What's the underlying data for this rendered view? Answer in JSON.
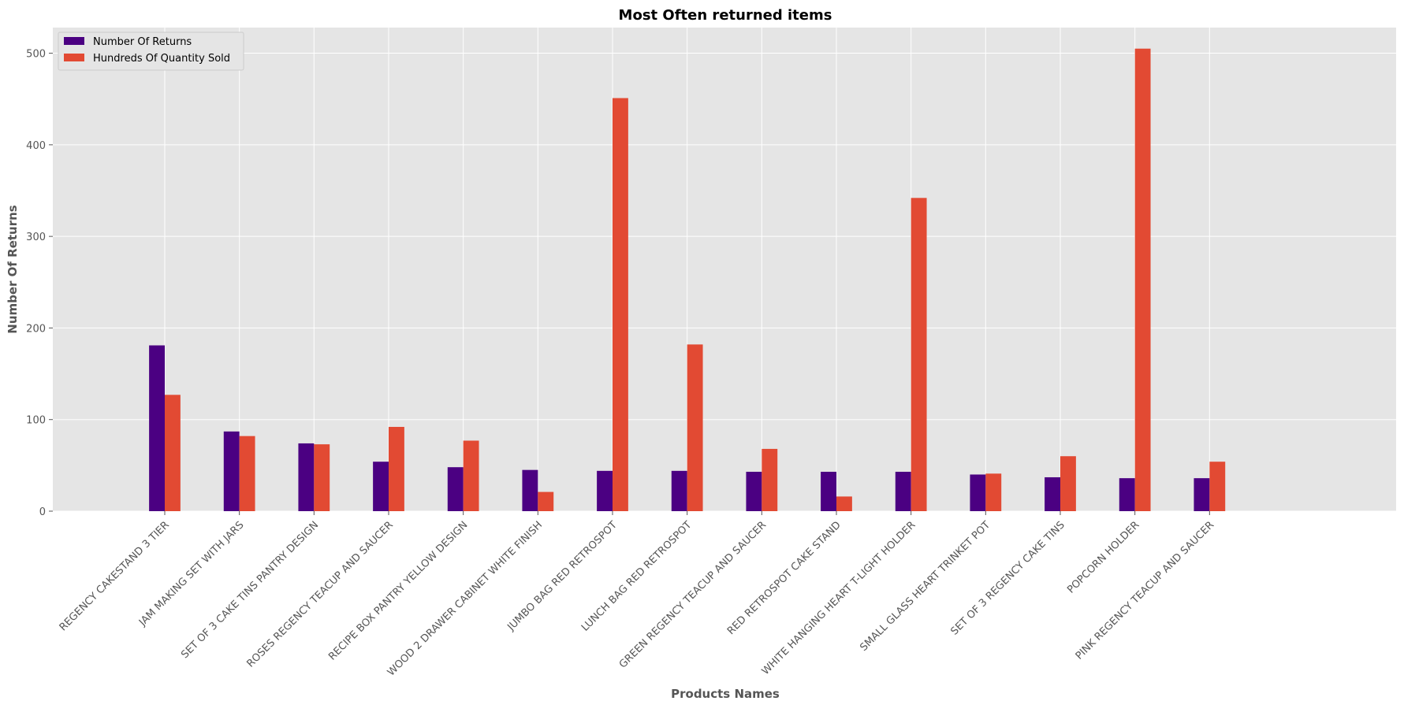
{
  "chart_data": {
    "type": "bar",
    "title": "Most Often returned items",
    "xlabel": "Products Names",
    "ylabel": "Number Of Returns",
    "ylim": [
      0,
      528
    ],
    "yticks": [
      0,
      100,
      200,
      300,
      400,
      500
    ],
    "grid": true,
    "legend_position": "top-left",
    "categories": [
      "REGENCY CAKESTAND 3 TIER",
      "JAM MAKING SET WITH JARS",
      "SET OF 3 CAKE TINS PANTRY DESIGN",
      "ROSES REGENCY TEACUP AND SAUCER",
      "RECIPE BOX PANTRY YELLOW DESIGN",
      "WOOD 2 DRAWER CABINET WHITE FINISH",
      "JUMBO BAG RED RETROSPOT",
      "LUNCH BAG RED RETROSPOT",
      "GREEN REGENCY TEACUP AND SAUCER",
      "RED RETROSPOT CAKE STAND",
      "WHITE HANGING HEART T-LIGHT HOLDER",
      "SMALL GLASS HEART TRINKET POT",
      "SET OF 3 REGENCY CAKE TINS",
      "POPCORN HOLDER",
      "PINK REGENCY TEACUP AND SAUCER"
    ],
    "series": [
      {
        "name": "Number Of Returns",
        "color": "#4b0082",
        "values": [
          181,
          87,
          74,
          54,
          48,
          45,
          44,
          44,
          43,
          43,
          43,
          40,
          37,
          36,
          36
        ]
      },
      {
        "name": "Hundreds Of Quantity Sold",
        "color": "#e24a33",
        "values": [
          127,
          82,
          73,
          92,
          77,
          21,
          451,
          182,
          68,
          16,
          342,
          41,
          60,
          505,
          54
        ]
      }
    ]
  }
}
